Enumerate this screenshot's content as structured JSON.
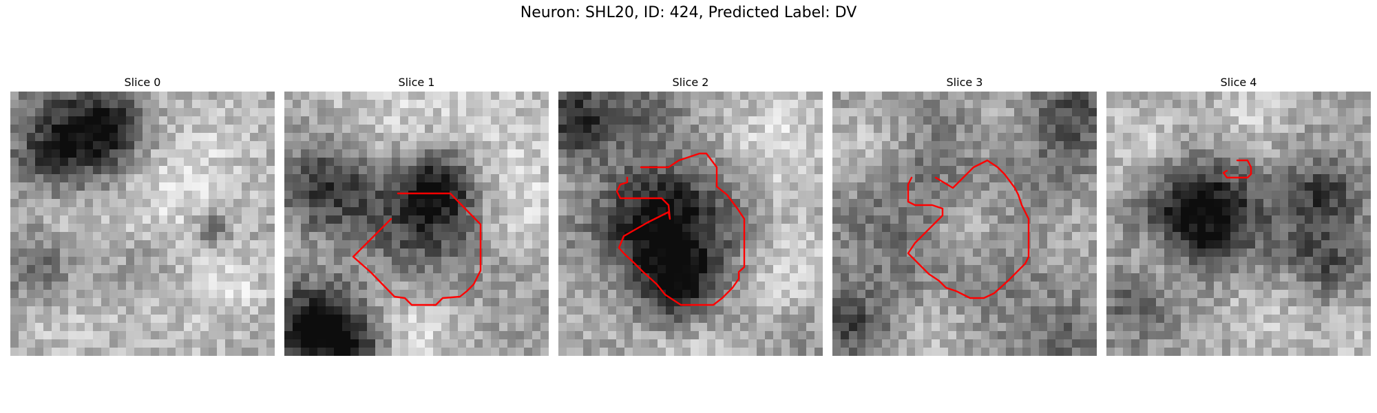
{
  "figure": {
    "title": "Neuron: SHL20, ID: 424, Predicted Label: DV",
    "contour_color": "#ff0000",
    "colormap": "gray",
    "grid_size": 32
  },
  "panels": [
    {
      "title": "Slice 0"
    },
    {
      "title": "Slice 1"
    },
    {
      "title": "Slice 2"
    },
    {
      "title": "Slice 3"
    },
    {
      "title": "Slice 4"
    }
  ]
}
